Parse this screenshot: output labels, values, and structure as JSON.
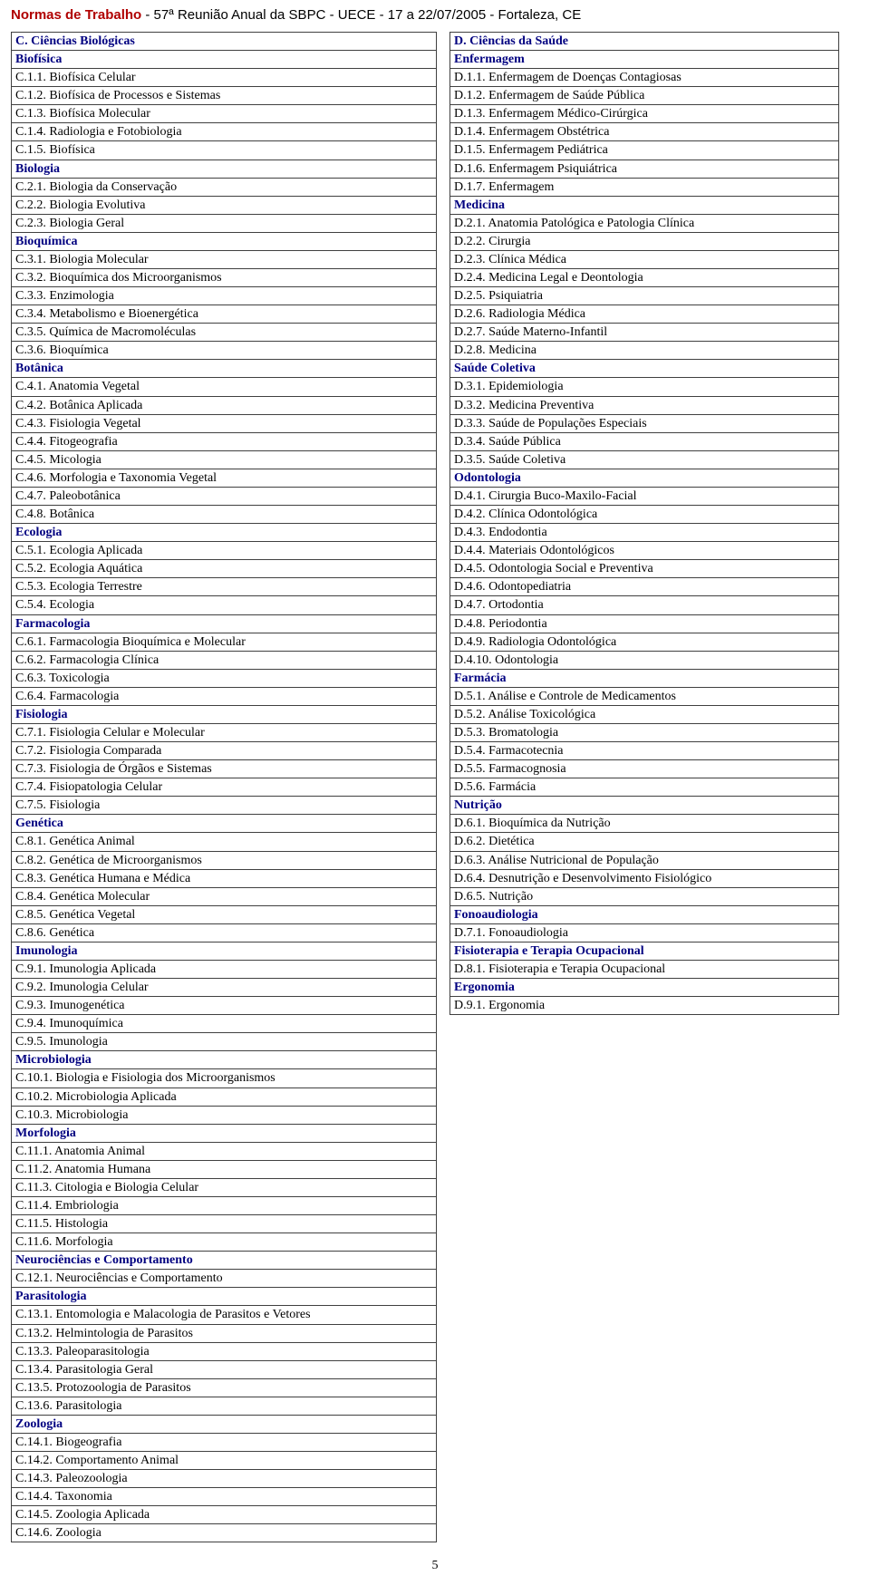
{
  "header": {
    "title": "Normas de Trabalho",
    "rest": " - 57ª Reunião Anual da SBPC - UECE - 17 a 22/07/2005 - Fortaleza, CE"
  },
  "left": [
    {
      "t": "cat",
      "x": "C. Ciências Biológicas"
    },
    {
      "t": "sub",
      "x": "Biofísica"
    },
    {
      "t": "item",
      "x": "C.1.1. Biofísica Celular"
    },
    {
      "t": "item",
      "x": "C.1.2. Biofísica de Processos e Sistemas"
    },
    {
      "t": "item",
      "x": "C.1.3. Biofísica Molecular"
    },
    {
      "t": "item",
      "x": "C.1.4. Radiologia e Fotobiologia"
    },
    {
      "t": "item",
      "x": "C.1.5. Biofísica"
    },
    {
      "t": "sub",
      "x": "Biologia"
    },
    {
      "t": "item",
      "x": "C.2.1. Biologia da Conservação"
    },
    {
      "t": "item",
      "x": "C.2.2. Biologia Evolutiva"
    },
    {
      "t": "item",
      "x": "C.2.3. Biologia Geral"
    },
    {
      "t": "sub",
      "x": "Bioquímica"
    },
    {
      "t": "item",
      "x": "C.3.1. Biologia Molecular"
    },
    {
      "t": "item",
      "x": "C.3.2. Bioquímica dos Microorganismos"
    },
    {
      "t": "item",
      "x": "C.3.3. Enzimologia"
    },
    {
      "t": "item",
      "x": "C.3.4. Metabolismo e Bioenergética"
    },
    {
      "t": "item",
      "x": "C.3.5. Química de Macromoléculas"
    },
    {
      "t": "item",
      "x": "C.3.6. Bioquímica"
    },
    {
      "t": "sub",
      "x": "Botânica"
    },
    {
      "t": "item",
      "x": "C.4.1. Anatomia Vegetal"
    },
    {
      "t": "item",
      "x": "C.4.2. Botânica Aplicada"
    },
    {
      "t": "item",
      "x": "C.4.3. Fisiologia Vegetal"
    },
    {
      "t": "item",
      "x": "C.4.4. Fitogeografia"
    },
    {
      "t": "item",
      "x": "C.4.5. Micologia"
    },
    {
      "t": "item",
      "x": "C.4.6. Morfologia e Taxonomia Vegetal"
    },
    {
      "t": "item",
      "x": "C.4.7. Paleobotânica"
    },
    {
      "t": "item",
      "x": "C.4.8. Botânica"
    },
    {
      "t": "sub",
      "x": "Ecologia"
    },
    {
      "t": "item",
      "x": "C.5.1. Ecologia Aplicada"
    },
    {
      "t": "item",
      "x": "C.5.2. Ecologia Aquática"
    },
    {
      "t": "item",
      "x": "C.5.3. Ecologia Terrestre"
    },
    {
      "t": "item",
      "x": "C.5.4. Ecologia"
    },
    {
      "t": "sub",
      "x": "Farmacologia"
    },
    {
      "t": "item",
      "x": "C.6.1. Farmacologia Bioquímica e Molecular"
    },
    {
      "t": "item",
      "x": "C.6.2. Farmacologia Clínica"
    },
    {
      "t": "item",
      "x": "C.6.3. Toxicologia"
    },
    {
      "t": "item",
      "x": "C.6.4. Farmacologia"
    },
    {
      "t": "sub",
      "x": "Fisiologia"
    },
    {
      "t": "item",
      "x": "C.7.1. Fisiologia Celular e Molecular"
    },
    {
      "t": "item",
      "x": "C.7.2. Fisiologia Comparada"
    },
    {
      "t": "item",
      "x": "C.7.3. Fisiologia de Órgãos e Sistemas"
    },
    {
      "t": "item",
      "x": "C.7.4. Fisiopatologia Celular"
    },
    {
      "t": "item",
      "x": "C.7.5. Fisiologia"
    },
    {
      "t": "sub",
      "x": "Genética"
    },
    {
      "t": "item",
      "x": "C.8.1. Genética Animal"
    },
    {
      "t": "item",
      "x": "C.8.2. Genética de Microorganismos"
    },
    {
      "t": "item",
      "x": "C.8.3. Genética Humana e Médica"
    },
    {
      "t": "item",
      "x": "C.8.4. Genética Molecular"
    },
    {
      "t": "item",
      "x": "C.8.5. Genética Vegetal"
    },
    {
      "t": "item",
      "x": "C.8.6. Genética"
    },
    {
      "t": "sub",
      "x": "Imunologia"
    },
    {
      "t": "item",
      "x": "C.9.1. Imunologia Aplicada"
    },
    {
      "t": "item",
      "x": "C.9.2. Imunologia Celular"
    },
    {
      "t": "item",
      "x": "C.9.3. Imunogenética"
    },
    {
      "t": "item",
      "x": "C.9.4. Imunoquímica"
    },
    {
      "t": "item",
      "x": "C.9.5. Imunologia"
    },
    {
      "t": "sub",
      "x": "Microbiologia"
    },
    {
      "t": "item",
      "x": "C.10.1. Biologia e Fisiologia dos Microorganismos"
    },
    {
      "t": "item",
      "x": "C.10.2. Microbiologia Aplicada"
    },
    {
      "t": "item",
      "x": "C.10.3. Microbiologia"
    },
    {
      "t": "sub",
      "x": "Morfologia"
    },
    {
      "t": "item",
      "x": "C.11.1. Anatomia Animal"
    },
    {
      "t": "item",
      "x": "C.11.2. Anatomia Humana"
    },
    {
      "t": "item",
      "x": "C.11.3. Citologia e Biologia Celular"
    },
    {
      "t": "item",
      "x": "C.11.4. Embriologia"
    },
    {
      "t": "item",
      "x": "C.11.5. Histologia"
    },
    {
      "t": "item",
      "x": "C.11.6. Morfologia"
    },
    {
      "t": "sub",
      "x": "Neurociências e Comportamento"
    },
    {
      "t": "item",
      "x": "C.12.1. Neurociências e Comportamento"
    },
    {
      "t": "sub",
      "x": "Parasitologia"
    },
    {
      "t": "item",
      "x": "C.13.1. Entomologia e Malacologia de Parasitos e Vetores"
    },
    {
      "t": "item",
      "x": "C.13.2. Helmintologia de Parasitos"
    },
    {
      "t": "item",
      "x": "C.13.3. Paleoparasitologia"
    },
    {
      "t": "item",
      "x": "C.13.4. Parasitologia Geral"
    },
    {
      "t": "item",
      "x": "C.13.5. Protozoologia de Parasitos"
    },
    {
      "t": "item",
      "x": "C.13.6. Parasitologia"
    },
    {
      "t": "sub",
      "x": "Zoologia"
    },
    {
      "t": "item",
      "x": "C.14.1. Biogeografia"
    },
    {
      "t": "item",
      "x": "C.14.2. Comportamento Animal"
    },
    {
      "t": "item",
      "x": "C.14.3. Paleozoologia"
    },
    {
      "t": "item",
      "x": "C.14.4. Taxonomia"
    },
    {
      "t": "item",
      "x": "C.14.5. Zoologia Aplicada"
    },
    {
      "t": "item",
      "x": "C.14.6. Zoologia"
    }
  ],
  "right": [
    {
      "t": "cat",
      "x": "D. Ciências da Saúde"
    },
    {
      "t": "sub",
      "x": "Enfermagem"
    },
    {
      "t": "item",
      "x": "D.1.1. Enfermagem de Doenças Contagiosas"
    },
    {
      "t": "item",
      "x": "D.1.2. Enfermagem de Saúde Pública"
    },
    {
      "t": "item",
      "x": "D.1.3. Enfermagem Médico-Cirúrgica"
    },
    {
      "t": "item",
      "x": "D.1.4. Enfermagem Obstétrica"
    },
    {
      "t": "item",
      "x": "D.1.5. Enfermagem Pediátrica"
    },
    {
      "t": "item",
      "x": "D.1.6. Enfermagem Psiquiátrica"
    },
    {
      "t": "item",
      "x": "D.1.7. Enfermagem"
    },
    {
      "t": "sub",
      "x": "Medicina"
    },
    {
      "t": "item",
      "x": "D.2.1. Anatomia Patológica e Patologia Clínica"
    },
    {
      "t": "item",
      "x": "D.2.2. Cirurgia"
    },
    {
      "t": "item",
      "x": "D.2.3. Clínica Médica"
    },
    {
      "t": "item",
      "x": "D.2.4. Medicina Legal e Deontologia"
    },
    {
      "t": "item",
      "x": "D.2.5. Psiquiatria"
    },
    {
      "t": "item",
      "x": "D.2.6. Radiologia Médica"
    },
    {
      "t": "item",
      "x": "D.2.7. Saúde Materno-Infantil"
    },
    {
      "t": "item",
      "x": "D.2.8. Medicina"
    },
    {
      "t": "sub",
      "x": "Saúde Coletiva"
    },
    {
      "t": "item",
      "x": "D.3.1. Epidemiologia"
    },
    {
      "t": "item",
      "x": "D.3.2. Medicina Preventiva"
    },
    {
      "t": "item",
      "x": "D.3.3. Saúde de Populações Especiais"
    },
    {
      "t": "item",
      "x": "D.3.4. Saúde Pública"
    },
    {
      "t": "item",
      "x": "D.3.5. Saúde Coletiva"
    },
    {
      "t": "sub",
      "x": "Odontologia"
    },
    {
      "t": "item",
      "x": "D.4.1. Cirurgia Buco-Maxilo-Facial"
    },
    {
      "t": "item",
      "x": "D.4.2. Clínica Odontológica"
    },
    {
      "t": "item",
      "x": "D.4.3. Endodontia"
    },
    {
      "t": "item",
      "x": "D.4.4. Materiais Odontológicos"
    },
    {
      "t": "item",
      "x": "D.4.5. Odontologia Social e Preventiva"
    },
    {
      "t": "item",
      "x": "D.4.6. Odontopediatria"
    },
    {
      "t": "item",
      "x": "D.4.7. Ortodontia"
    },
    {
      "t": "item",
      "x": "D.4.8. Periodontia"
    },
    {
      "t": "item",
      "x": "D.4.9. Radiologia Odontológica"
    },
    {
      "t": "item",
      "x": "D.4.10. Odontologia"
    },
    {
      "t": "sub",
      "x": "Farmácia"
    },
    {
      "t": "item",
      "x": "D.5.1. Análise e Controle de Medicamentos"
    },
    {
      "t": "item",
      "x": "D.5.2. Análise Toxicológica"
    },
    {
      "t": "item",
      "x": "D.5.3. Bromatologia"
    },
    {
      "t": "item",
      "x": "D.5.4. Farmacotecnia"
    },
    {
      "t": "item",
      "x": "D.5.5. Farmacognosia"
    },
    {
      "t": "item",
      "x": "D.5.6. Farmácia"
    },
    {
      "t": "sub",
      "x": "Nutrição"
    },
    {
      "t": "item",
      "x": "D.6.1. Bioquímica da Nutrição"
    },
    {
      "t": "item",
      "x": "D.6.2. Dietética"
    },
    {
      "t": "item",
      "x": "D.6.3. Análise Nutricional de População"
    },
    {
      "t": "item",
      "x": "D.6.4. Desnutrição e Desenvolvimento Fisiológico"
    },
    {
      "t": "item",
      "x": "D.6.5. Nutrição"
    },
    {
      "t": "sub",
      "x": "Fonoaudiologia"
    },
    {
      "t": "item",
      "x": "D.7.1. Fonoaudiologia"
    },
    {
      "t": "sub",
      "x": "Fisioterapia e Terapia Ocupacional"
    },
    {
      "t": "item",
      "x": "D.8.1. Fisioterapia e Terapia Ocupacional"
    },
    {
      "t": "sub",
      "x": "Ergonomia"
    },
    {
      "t": "item",
      "x": "D.9.1. Ergonomia"
    }
  ],
  "pagenum": "5"
}
